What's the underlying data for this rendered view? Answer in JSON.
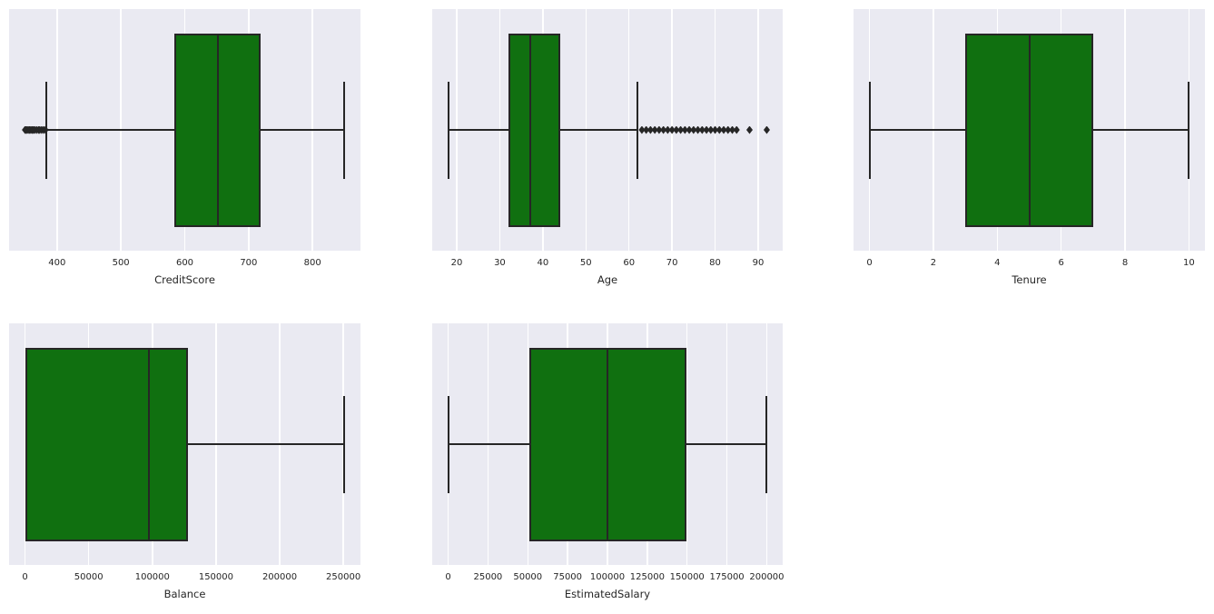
{
  "figure": {
    "background_color": "#ffffff",
    "panel_background_color": "#eaeaf2",
    "gridline_color": "#ffffff",
    "box_fill_color": "#107010",
    "line_color": "#262626",
    "text_color": "#262626"
  },
  "chart_data": [
    {
      "type": "box",
      "orientation": "horizontal",
      "xlabel": "CreditScore",
      "xlim": [
        325,
        875
      ],
      "xticks": [
        400,
        500,
        600,
        700,
        800
      ],
      "grid": "vertical-white",
      "stats": {
        "whisker_low": 383,
        "q1": 584,
        "median": 652,
        "q3": 718,
        "whisker_high": 850
      },
      "outliers": [
        350,
        351,
        353,
        355,
        357,
        359,
        361,
        363,
        365,
        368,
        371,
        373,
        376,
        379,
        382
      ]
    },
    {
      "type": "box",
      "orientation": "horizontal",
      "xlabel": "Age",
      "xlim": [
        14.3,
        95.7
      ],
      "xticks": [
        20,
        30,
        40,
        50,
        60,
        70,
        80,
        90
      ],
      "grid": "vertical-white",
      "stats": {
        "whisker_low": 18,
        "q1": 32,
        "median": 37,
        "q3": 44,
        "whisker_high": 62
      },
      "outliers": [
        63,
        64,
        65,
        66,
        67,
        68,
        69,
        70,
        71,
        72,
        73,
        74,
        75,
        76,
        77,
        78,
        79,
        80,
        81,
        82,
        83,
        84,
        85,
        88,
        92
      ]
    },
    {
      "type": "box",
      "orientation": "horizontal",
      "xlabel": "Tenure",
      "xlim": [
        -0.5,
        10.5
      ],
      "xticks": [
        0,
        2,
        4,
        6,
        8,
        10
      ],
      "grid": "vertical-white",
      "stats": {
        "whisker_low": 0,
        "q1": 3,
        "median": 5,
        "q3": 7,
        "whisker_high": 10
      },
      "outliers": []
    },
    {
      "type": "box",
      "orientation": "horizontal",
      "xlabel": "Balance",
      "xlim": [
        -12545,
        263443
      ],
      "xticks": [
        0,
        50000,
        100000,
        150000,
        200000,
        250000
      ],
      "grid": "vertical-white",
      "stats": {
        "whisker_low": 0,
        "q1": 0,
        "median": 97199,
        "q3": 127644,
        "whisker_high": 250898
      },
      "outliers": []
    },
    {
      "type": "box",
      "orientation": "horizontal",
      "xlabel": "EstimatedSalary",
      "xlim": [
        -9988,
        209991
      ],
      "xticks": [
        0,
        25000,
        50000,
        75000,
        100000,
        125000,
        150000,
        175000,
        200000
      ],
      "grid": "vertical-white",
      "stats": {
        "whisker_low": 12,
        "q1": 51002,
        "median": 100194,
        "q3": 149388,
        "whisker_high": 199992
      },
      "outliers": []
    }
  ]
}
